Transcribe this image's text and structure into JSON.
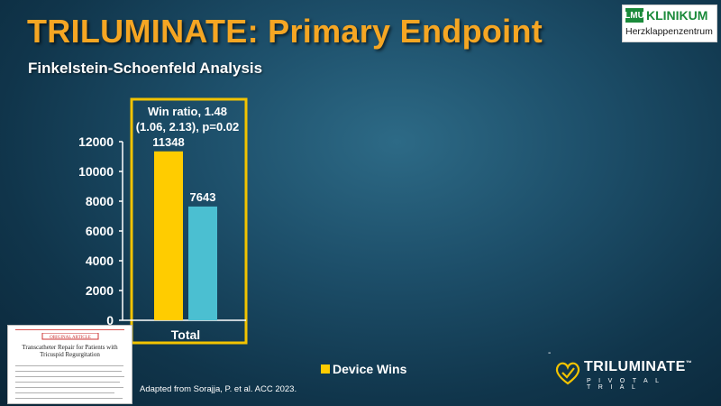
{
  "slide": {
    "title": "TRILUMINATE: Primary Endpoint",
    "subtitle": "Finkelstein-Schoenfeld Analysis",
    "citation": "Adapted from Sorajja, P. et al. ACC 2023."
  },
  "logo": {
    "badge": "LMU",
    "name": "KLINIKUM",
    "sub": "Herzklappenzentrum"
  },
  "paper_thumbnail": {
    "banner": "ORIGINAL ARTICLE",
    "heading": "Transcatheter Repair for Patients with Tricuspid Regurgitation"
  },
  "trial_logo": {
    "name": "TRILUMINATE",
    "sub": "PIVOTAL TRIAL",
    "trademark": "™"
  },
  "colors": {
    "title": "#f5a623",
    "device_bar": "#ffcc00",
    "comparator_bar": "#4bbfd1",
    "highlight_box": "#f2c300"
  },
  "chart_data": {
    "type": "bar",
    "categories": [
      "Total"
    ],
    "series": [
      {
        "name": "Device Wins",
        "values": [
          11348
        ],
        "color": "#ffcc00"
      },
      {
        "name": "",
        "values": [
          7643
        ],
        "color": "#4bbfd1"
      }
    ],
    "data_labels": [
      "11348",
      "7643"
    ],
    "ylim": [
      0,
      12000
    ],
    "yticks": [
      0,
      2000,
      4000,
      6000,
      8000,
      10000,
      12000
    ],
    "annotation": [
      "Win ratio, 1.48",
      "(1.06, 2.13), p=0.02"
    ],
    "legend": {
      "entries": [
        "Device Wins"
      ],
      "position": "bottom"
    },
    "grid": false
  }
}
